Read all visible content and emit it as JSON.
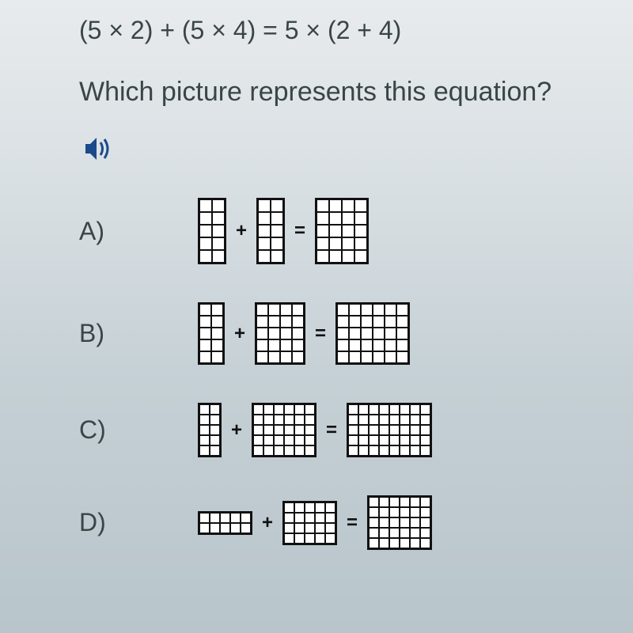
{
  "equation": "(5 × 2) + (5 × 4) = 5 × (2 + 4)",
  "question": "Which picture represents this equation?",
  "plus": "+",
  "equals": "=",
  "options": {
    "A": {
      "label": "A)",
      "g1": {
        "r": 5,
        "c": 2,
        "size": 16
      },
      "g2": {
        "r": 5,
        "c": 2,
        "size": 16
      },
      "g3": {
        "r": 5,
        "c": 4,
        "size": 16
      }
    },
    "B": {
      "label": "B)",
      "g1": {
        "r": 5,
        "c": 2,
        "size": 15
      },
      "g2": {
        "r": 5,
        "c": 4,
        "size": 15
      },
      "g3": {
        "r": 5,
        "c": 6,
        "size": 15
      }
    },
    "C": {
      "label": "C)",
      "g1": {
        "r": 5,
        "c": 2,
        "size": 13
      },
      "g2": {
        "r": 5,
        "c": 6,
        "size": 13
      },
      "g3": {
        "r": 5,
        "c": 8,
        "size": 13
      }
    },
    "D": {
      "label": "D)",
      "g1": {
        "r": 2,
        "c": 5,
        "size": 13
      },
      "g2": {
        "r": 4,
        "c": 5,
        "size": 13
      },
      "g3": {
        "r": 5,
        "c": 6,
        "size": 13
      }
    }
  },
  "colors": {
    "border": "#111",
    "text": "#3a4548",
    "speaker": "#1b4a8a"
  }
}
